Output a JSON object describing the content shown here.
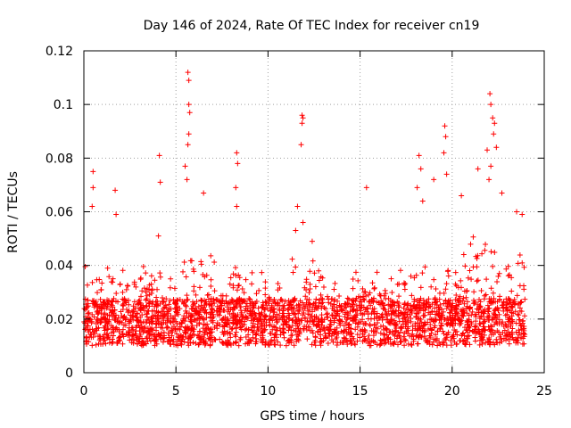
{
  "chart_data": {
    "type": "scatter",
    "title": "Day 146 of 2024, Rate Of TEC Index for receiver cn19",
    "xlabel": "GPS time / hours",
    "ylabel": "ROTI / TECUs",
    "xlim": [
      0,
      25
    ],
    "ylim": [
      0,
      0.12
    ],
    "x_ticks": [
      0,
      5,
      10,
      15,
      20,
      25
    ],
    "x_tick_labels": [
      "0",
      "5",
      "10",
      "15",
      "20",
      "25"
    ],
    "y_ticks": [
      0,
      0.02,
      0.04,
      0.06,
      0.08,
      0.1,
      0.12
    ],
    "y_tick_labels": [
      "0",
      "0.02",
      "0.04",
      "0.06",
      "0.08",
      "0.1",
      "0.12"
    ],
    "grid": true,
    "marker": "+",
    "color": "#ff0000",
    "series": [
      {
        "name": "ROTI",
        "x_range": [
          0,
          23.95
        ],
        "band_low": 0.008,
        "band_high": 0.03,
        "typical": 0.015,
        "notable_points": [
          {
            "x": 0.5,
            "y": 0.075
          },
          {
            "x": 0.5,
            "y": 0.069
          },
          {
            "x": 0.45,
            "y": 0.062
          },
          {
            "x": 1.7,
            "y": 0.068
          },
          {
            "x": 1.75,
            "y": 0.059
          },
          {
            "x": 4.1,
            "y": 0.081
          },
          {
            "x": 4.15,
            "y": 0.071
          },
          {
            "x": 4.05,
            "y": 0.051
          },
          {
            "x": 5.65,
            "y": 0.112
          },
          {
            "x": 5.7,
            "y": 0.109
          },
          {
            "x": 5.7,
            "y": 0.1
          },
          {
            "x": 5.75,
            "y": 0.097
          },
          {
            "x": 5.7,
            "y": 0.089
          },
          {
            "x": 5.65,
            "y": 0.085
          },
          {
            "x": 5.5,
            "y": 0.077
          },
          {
            "x": 5.6,
            "y": 0.072
          },
          {
            "x": 6.5,
            "y": 0.067
          },
          {
            "x": 8.3,
            "y": 0.082
          },
          {
            "x": 8.35,
            "y": 0.078
          },
          {
            "x": 8.25,
            "y": 0.069
          },
          {
            "x": 8.3,
            "y": 0.062
          },
          {
            "x": 11.6,
            "y": 0.062
          },
          {
            "x": 11.5,
            "y": 0.053
          },
          {
            "x": 11.85,
            "y": 0.096
          },
          {
            "x": 11.9,
            "y": 0.095
          },
          {
            "x": 11.85,
            "y": 0.093
          },
          {
            "x": 11.8,
            "y": 0.085
          },
          {
            "x": 11.9,
            "y": 0.056
          },
          {
            "x": 12.4,
            "y": 0.049
          },
          {
            "x": 15.35,
            "y": 0.069
          },
          {
            "x": 18.2,
            "y": 0.081
          },
          {
            "x": 18.3,
            "y": 0.076
          },
          {
            "x": 18.1,
            "y": 0.069
          },
          {
            "x": 18.4,
            "y": 0.064
          },
          {
            "x": 19.0,
            "y": 0.072
          },
          {
            "x": 19.6,
            "y": 0.092
          },
          {
            "x": 19.65,
            "y": 0.088
          },
          {
            "x": 19.55,
            "y": 0.082
          },
          {
            "x": 19.7,
            "y": 0.074
          },
          {
            "x": 20.5,
            "y": 0.066
          },
          {
            "x": 21.4,
            "y": 0.076
          },
          {
            "x": 21.9,
            "y": 0.083
          },
          {
            "x": 22.05,
            "y": 0.104
          },
          {
            "x": 22.1,
            "y": 0.1
          },
          {
            "x": 22.2,
            "y": 0.095
          },
          {
            "x": 22.3,
            "y": 0.093
          },
          {
            "x": 22.25,
            "y": 0.089
          },
          {
            "x": 22.4,
            "y": 0.084
          },
          {
            "x": 22.1,
            "y": 0.077
          },
          {
            "x": 22.0,
            "y": 0.072
          },
          {
            "x": 22.7,
            "y": 0.067
          },
          {
            "x": 23.5,
            "y": 0.06
          },
          {
            "x": 23.8,
            "y": 0.059
          }
        ]
      }
    ]
  }
}
